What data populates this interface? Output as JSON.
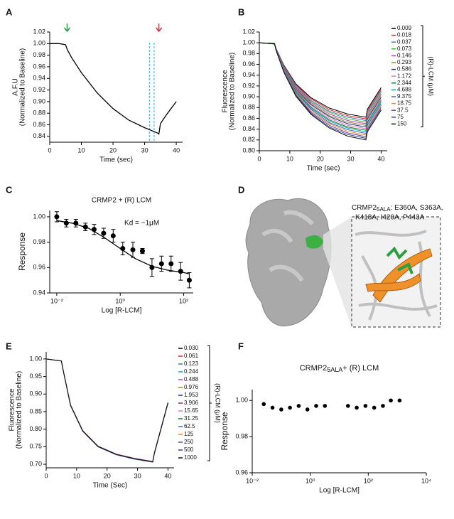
{
  "panel_labels": [
    "A",
    "B",
    "C",
    "D",
    "E",
    "F"
  ],
  "panel_d": {
    "caption": [
      "CRMP2",
      "5ALA",
      ": E360A, S363A,",
      "K418A, I420A, P443A"
    ]
  },
  "chart_data": [
    {
      "type": "line",
      "xlabel": "Time (sec)",
      "ylabel": [
        "A.F.U",
        "(Normalized to Baseline)"
      ],
      "x": [
        0,
        3,
        5,
        5.5,
        7,
        10,
        15,
        20,
        25,
        30,
        34,
        34.5,
        35,
        37,
        40
      ],
      "values": [
        1.0,
        1.0,
        0.998,
        0.99,
        0.975,
        0.95,
        0.915,
        0.888,
        0.868,
        0.855,
        0.846,
        0.844,
        0.862,
        0.878,
        0.9
      ],
      "color": "#000000",
      "xlim": [
        0,
        42
      ],
      "xticks": [
        0,
        10,
        20,
        30,
        40
      ],
      "ylim": [
        0.83,
        1.02
      ],
      "yticks": [
        0.84,
        0.86,
        0.88,
        {
          "value": 0.9,
          "label": "0.90"
        },
        0.92,
        0.94,
        0.96,
        0.98,
        {
          "value": 1.0,
          "label": "1.00"
        },
        1.02
      ],
      "vlines": [
        31.5,
        33
      ],
      "vline_color": "#2aa7e0",
      "arrows": [
        {
          "x": 5.5,
          "color": "#2a9d4a"
        },
        {
          "x": 34.5,
          "color": "#e53030"
        }
      ]
    },
    {
      "type": "line",
      "xlabel": "Time (sec)",
      "ylabel": [
        "Fluorescence",
        "(Normalized to Baseline)"
      ],
      "legend_title": "(R)-LCM (μM)",
      "x": [
        0,
        5,
        5.5,
        8,
        12,
        17,
        23,
        29,
        35,
        35.5,
        40
      ],
      "xlim": [
        0,
        42
      ],
      "xticks": [
        0,
        10,
        20,
        30,
        40
      ],
      "ylim": [
        0.8,
        1.02
      ],
      "yticks": [
        {
          "value": 0.8,
          "label": "0.80"
        },
        0.82,
        0.84,
        0.86,
        0.88,
        {
          "value": 0.9,
          "label": "0.90"
        },
        0.92,
        0.94,
        0.96,
        0.98,
        {
          "value": 1.0,
          "label": "1.00"
        },
        1.02
      ],
      "series": [
        {
          "name": "0.009",
          "color": "#000000",
          "values": [
            1,
            0.999,
            0.989,
            0.959,
            0.924,
            0.898,
            0.879,
            0.868,
            0.862,
            0.877,
            0.917
          ]
        },
        {
          "name": "0.018",
          "color": "#e41a1c",
          "values": [
            1,
            0.999,
            0.989,
            0.958,
            0.922,
            0.896,
            0.876,
            0.865,
            0.859,
            0.874,
            0.914
          ]
        },
        {
          "name": "0.037",
          "color": "#377eb8",
          "values": [
            1,
            0.999,
            0.988,
            0.957,
            0.921,
            0.893,
            0.873,
            0.862,
            0.856,
            0.871,
            0.911
          ]
        },
        {
          "name": "0.073",
          "color": "#4daf4a",
          "values": [
            1,
            0.999,
            0.988,
            0.956,
            0.919,
            0.891,
            0.871,
            0.859,
            0.853,
            0.868,
            0.908
          ]
        },
        {
          "name": "0.146",
          "color": "#c03fc0",
          "values": [
            1,
            0.998,
            0.988,
            0.955,
            0.918,
            0.889,
            0.868,
            0.856,
            0.85,
            0.865,
            0.905
          ]
        },
        {
          "name": "0.293",
          "color": "#8c8c1a",
          "values": [
            1,
            0.998,
            0.988,
            0.954,
            0.916,
            0.887,
            0.865,
            0.853,
            0.847,
            0.862,
            0.902
          ]
        },
        {
          "name": "0.586",
          "color": "#1f2f8f",
          "values": [
            1,
            0.998,
            0.988,
            0.953,
            0.914,
            0.885,
            0.863,
            0.85,
            0.844,
            0.859,
            0.899
          ]
        },
        {
          "name": "1.172",
          "color": "#e377c2",
          "values": [
            1,
            0.998,
            0.987,
            0.952,
            0.913,
            0.882,
            0.86,
            0.847,
            0.841,
            0.856,
            0.896
          ]
        },
        {
          "name": "2.344",
          "color": "#1b7a2e",
          "values": [
            1,
            0.998,
            0.987,
            0.951,
            0.911,
            0.88,
            0.857,
            0.844,
            0.838,
            0.853,
            0.893
          ]
        },
        {
          "name": "4.688",
          "color": "#17a2a2",
          "values": [
            1,
            0.998,
            0.987,
            0.951,
            0.909,
            0.878,
            0.855,
            0.842,
            0.835,
            0.85,
            0.89
          ]
        },
        {
          "name": "9.375",
          "color": "#3366dd",
          "values": [
            1,
            0.998,
            0.987,
            0.95,
            0.908,
            0.876,
            0.852,
            0.839,
            0.832,
            0.847,
            0.887
          ]
        },
        {
          "name": "18.75",
          "color": "#f08c1a",
          "values": [
            1,
            0.998,
            0.986,
            0.949,
            0.906,
            0.873,
            0.85,
            0.836,
            0.829,
            0.844,
            0.884
          ]
        },
        {
          "name": "37.5",
          "color": "#7b3fa0",
          "values": [
            1,
            0.998,
            0.986,
            0.948,
            0.904,
            0.871,
            0.847,
            0.833,
            0.826,
            0.841,
            0.881
          ]
        },
        {
          "name": "75",
          "color": "#26468a",
          "values": [
            1,
            0.998,
            0.986,
            0.947,
            0.903,
            0.869,
            0.844,
            0.83,
            0.823,
            0.838,
            0.878
          ]
        },
        {
          "name": "150",
          "color": "#111111",
          "values": [
            1,
            0.998,
            0.986,
            0.946,
            0.901,
            0.867,
            0.842,
            0.827,
            0.82,
            0.835,
            0.875
          ]
        }
      ]
    },
    {
      "type": "scatter",
      "title": "CRMP2 + (R) LCM",
      "annotation": "Kd = ~1μM",
      "xlabel": "Log [R-LCM]",
      "ylabel": [
        "Response"
      ],
      "xscale": "log",
      "xlim": [
        0.006,
        200
      ],
      "xticks": [
        {
          "value": 0.01,
          "label": "10⁻²"
        },
        {
          "value": 1,
          "label": "10⁰"
        },
        {
          "value": 100,
          "label": "10²"
        }
      ],
      "ylim": [
        0.94,
        1.005
      ],
      "yticks": [
        0.94,
        0.96,
        0.98,
        {
          "value": 1.0,
          "label": "1.00"
        }
      ],
      "x": [
        0.01,
        0.02,
        0.04,
        0.08,
        0.15,
        0.3,
        0.6,
        1.2,
        2.5,
        5,
        10,
        20,
        40,
        80,
        150
      ],
      "values": [
        1.0,
        0.995,
        0.995,
        0.992,
        0.99,
        0.987,
        0.985,
        0.975,
        0.974,
        0.973,
        0.96,
        0.963,
        0.963,
        0.957,
        0.95
      ],
      "errors": [
        0.004,
        0.003,
        0.003,
        0.003,
        0.004,
        0.004,
        0.005,
        0.005,
        0.006,
        0.002,
        0.007,
        0.006,
        0.006,
        0.007,
        0.006
      ],
      "color": "#000000",
      "fit": {
        "x": [
          0.01,
          0.03,
          0.1,
          0.3,
          1,
          3,
          10,
          30,
          100,
          150
        ],
        "values": [
          0.997,
          0.995,
          0.991,
          0.984,
          0.975,
          0.967,
          0.961,
          0.958,
          0.956,
          0.955
        ]
      }
    },
    {
      "type": "line",
      "xlabel": "Time (Sec)",
      "ylabel": [
        "Fluorescence",
        "(Normalized to Baseline)"
      ],
      "legend_title": "(R)-LCM (μM)",
      "x": [
        0,
        5,
        5.5,
        8,
        12,
        17,
        23,
        29,
        35,
        35.5,
        40
      ],
      "xlim": [
        0,
        42
      ],
      "xticks": [
        0,
        10,
        20,
        30,
        40
      ],
      "ylim": [
        0.69,
        1.02
      ],
      "yticks": [
        {
          "value": 0.7,
          "label": "0.70"
        },
        0.75,
        {
          "value": 0.8,
          "label": "0.80"
        },
        0.85,
        {
          "value": 0.9,
          "label": "0.90"
        },
        0.95,
        {
          "value": 1.0,
          "label": "1.00"
        }
      ],
      "series": [
        {
          "name": "0.030",
          "color": "#000000",
          "values": [
            1,
            0.994,
            0.971,
            0.868,
            0.795,
            0.751,
            0.728,
            0.716,
            0.707,
            0.73,
            0.875
          ]
        },
        {
          "name": "0.061",
          "color": "#e41a1c",
          "values": [
            1,
            0.994,
            0.971,
            0.869,
            0.796,
            0.752,
            0.729,
            0.717,
            0.708,
            0.731,
            0.876
          ]
        },
        {
          "name": "0.123",
          "color": "#377eb8",
          "values": [
            1,
            0.994,
            0.971,
            0.868,
            0.795,
            0.751,
            0.728,
            0.716,
            0.707,
            0.73,
            0.875
          ]
        },
        {
          "name": "0.244",
          "color": "#17a2a2",
          "values": [
            1,
            0.994,
            0.971,
            0.867,
            0.794,
            0.75,
            0.727,
            0.715,
            0.706,
            0.729,
            0.874
          ]
        },
        {
          "name": "0.488",
          "color": "#c03fc0",
          "values": [
            1,
            0.994,
            0.971,
            0.868,
            0.795,
            0.751,
            0.728,
            0.716,
            0.707,
            0.73,
            0.875
          ]
        },
        {
          "name": "0.976",
          "color": "#8c8c1a",
          "values": [
            1,
            0.994,
            0.971,
            0.868,
            0.795,
            0.751,
            0.728,
            0.716,
            0.707,
            0.73,
            0.875
          ]
        },
        {
          "name": "1.953",
          "color": "#1f2f8f",
          "values": [
            1,
            0.994,
            0.971,
            0.868,
            0.795,
            0.751,
            0.728,
            0.716,
            0.707,
            0.73,
            0.875
          ]
        },
        {
          "name": "3.906",
          "color": "#a0302a",
          "values": [
            1,
            0.994,
            0.971,
            0.869,
            0.796,
            0.752,
            0.729,
            0.717,
            0.708,
            0.731,
            0.876
          ]
        },
        {
          "name": "15.65",
          "color": "#e377c2",
          "values": [
            1,
            0.994,
            0.971,
            0.868,
            0.795,
            0.751,
            0.728,
            0.716,
            0.707,
            0.73,
            0.875
          ]
        },
        {
          "name": "31.25",
          "color": "#1b7a2e",
          "values": [
            1,
            0.994,
            0.971,
            0.868,
            0.795,
            0.751,
            0.728,
            0.716,
            0.707,
            0.73,
            0.875
          ]
        },
        {
          "name": "62.5",
          "color": "#3366dd",
          "values": [
            1,
            0.994,
            0.971,
            0.867,
            0.794,
            0.75,
            0.727,
            0.715,
            0.706,
            0.729,
            0.874
          ]
        },
        {
          "name": "125",
          "color": "#f08c1a",
          "values": [
            1,
            0.994,
            0.971,
            0.868,
            0.795,
            0.751,
            0.728,
            0.716,
            0.707,
            0.73,
            0.875
          ]
        },
        {
          "name": "250",
          "color": "#7b3fa0",
          "values": [
            1,
            0.994,
            0.971,
            0.868,
            0.795,
            0.751,
            0.728,
            0.716,
            0.707,
            0.73,
            0.875
          ]
        },
        {
          "name": "500",
          "color": "#26468a",
          "values": [
            1,
            0.994,
            0.971,
            0.868,
            0.795,
            0.751,
            0.728,
            0.716,
            0.707,
            0.73,
            0.875
          ]
        },
        {
          "name": "1000",
          "color": "#111111",
          "values": [
            1,
            0.994,
            0.971,
            0.868,
            0.795,
            0.751,
            0.728,
            0.716,
            0.707,
            0.73,
            0.875
          ]
        }
      ]
    },
    {
      "type": "scatter",
      "title": [
        "CRMP2",
        "5ALA",
        "+ (R) LCM"
      ],
      "xlabel": "Log [R-LCM]",
      "ylabel": [
        "Response"
      ],
      "xscale": "log",
      "xlim": [
        0.01,
        10000
      ],
      "xticks": [
        {
          "value": 0.01,
          "label": "10⁻²"
        },
        {
          "value": 1,
          "label": "10⁰"
        },
        {
          "value": 100,
          "label": "10²"
        },
        {
          "value": 10000,
          "label": "10⁴"
        }
      ],
      "ylim": [
        0.96,
        1.006
      ],
      "yticks": [
        0.96,
        0.98,
        {
          "value": 1.0,
          "label": "1.00"
        }
      ],
      "x": [
        0.025,
        0.05,
        0.1,
        0.2,
        0.4,
        0.8,
        1.6,
        3.2,
        20,
        40,
        80,
        160,
        320,
        600,
        1200
      ],
      "values": [
        0.998,
        0.996,
        0.995,
        0.996,
        0.997,
        0.995,
        0.997,
        0.997,
        0.997,
        0.996,
        0.997,
        0.996,
        0.997,
        1.0,
        1.0
      ],
      "color": "#000000"
    }
  ]
}
